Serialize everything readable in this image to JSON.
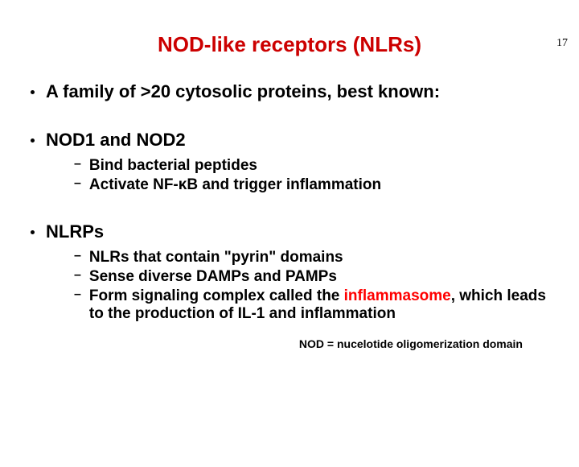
{
  "page_number": "17",
  "title": {
    "text": "NOD-like receptors (NLRs)",
    "color": "#cc0000",
    "fontsize": 26
  },
  "bullets": [
    {
      "text": "A family of >20 cytosolic proteins, best known:",
      "fontsize": 22,
      "sub": []
    },
    {
      "text": "NOD1 and NOD2",
      "fontsize": 22,
      "sub": [
        {
          "text": "Bind bacterial peptides",
          "fontsize": 19
        },
        {
          "text": "Activate NF-κB and trigger inflammation",
          "fontsize": 19
        }
      ]
    },
    {
      "text": "NLRPs",
      "fontsize": 22,
      "sub": [
        {
          "text": "NLRs that contain \"pyrin\" domains",
          "fontsize": 19
        },
        {
          "text": "Sense diverse DAMPs and PAMPs",
          "fontsize": 19
        },
        {
          "prefix": "Form signaling complex called the ",
          "highlight": "inflammasome",
          "highlight_color": "#ff0000",
          "suffix": ", which leads to the production of IL-1 and inflammation",
          "fontsize": 19
        }
      ]
    }
  ],
  "footnote": {
    "text": "NOD = nucelotide oligomerization domain",
    "fontsize": 14
  },
  "colors": {
    "text": "#000000",
    "background": "#ffffff"
  }
}
